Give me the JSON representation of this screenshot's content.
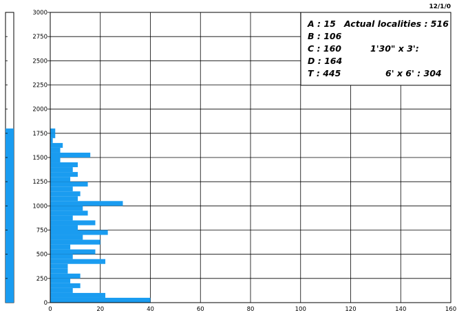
{
  "date_label": "12/1/0",
  "legend": {
    "a": "A :  15",
    "b": "B :  106",
    "c": "C :  160",
    "d": "D :  164",
    "t": "T :  445",
    "actual": "Actual localities :  516",
    "grid1": "1'30\" x 3':",
    "grid2": "6' x 6' :  304"
  },
  "colors": {
    "bar": "#1a9cf0",
    "grid": "#000000",
    "background": "#ffffff"
  },
  "side_gauge": {
    "value": 1800,
    "max": 3000
  },
  "chart_data": {
    "type": "bar",
    "orientation": "horizontal",
    "title": "",
    "xlabel": "",
    "ylabel": "",
    "xlim": [
      0,
      160
    ],
    "ylim": [
      0,
      3000
    ],
    "x_ticks": [
      0,
      20,
      40,
      60,
      80,
      100,
      120,
      140,
      160
    ],
    "y_ticks": [
      0,
      250,
      500,
      750,
      1000,
      1250,
      1500,
      1750,
      2000,
      2250,
      2500,
      2750,
      3000
    ],
    "bin_size": 50,
    "bins": [
      {
        "y": 0,
        "value": 40
      },
      {
        "y": 50,
        "value": 22
      },
      {
        "y": 100,
        "value": 9
      },
      {
        "y": 150,
        "value": 12
      },
      {
        "y": 200,
        "value": 8
      },
      {
        "y": 250,
        "value": 12
      },
      {
        "y": 300,
        "value": 7
      },
      {
        "y": 350,
        "value": 7
      },
      {
        "y": 400,
        "value": 22
      },
      {
        "y": 450,
        "value": 9
      },
      {
        "y": 500,
        "value": 18
      },
      {
        "y": 550,
        "value": 8
      },
      {
        "y": 600,
        "value": 20
      },
      {
        "y": 650,
        "value": 13
      },
      {
        "y": 700,
        "value": 23
      },
      {
        "y": 750,
        "value": 11
      },
      {
        "y": 800,
        "value": 18
      },
      {
        "y": 850,
        "value": 9
      },
      {
        "y": 900,
        "value": 15
      },
      {
        "y": 950,
        "value": 13
      },
      {
        "y": 1000,
        "value": 29
      },
      {
        "y": 1050,
        "value": 11
      },
      {
        "y": 1100,
        "value": 12
      },
      {
        "y": 1150,
        "value": 9
      },
      {
        "y": 1200,
        "value": 15
      },
      {
        "y": 1250,
        "value": 8
      },
      {
        "y": 1300,
        "value": 11
      },
      {
        "y": 1350,
        "value": 9
      },
      {
        "y": 1400,
        "value": 11
      },
      {
        "y": 1450,
        "value": 4
      },
      {
        "y": 1500,
        "value": 16
      },
      {
        "y": 1550,
        "value": 4
      },
      {
        "y": 1600,
        "value": 5
      },
      {
        "y": 1650,
        "value": 1
      },
      {
        "y": 1700,
        "value": 2
      },
      {
        "y": 1750,
        "value": 2
      }
    ]
  }
}
